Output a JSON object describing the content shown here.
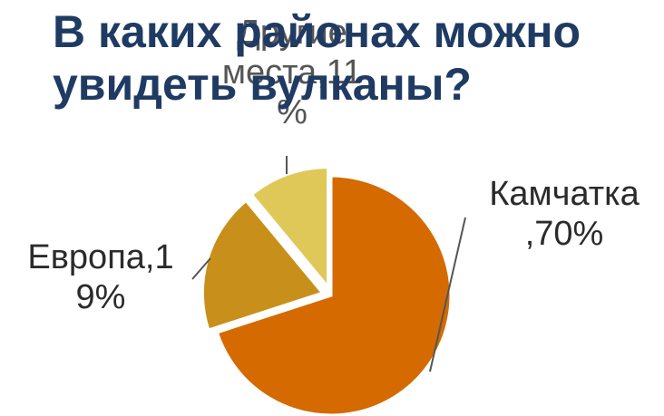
{
  "title": {
    "line1": "В каких районах можно",
    "line2": "увидеть вулканы?"
  },
  "chart_data": {
    "type": "pie",
    "title": "В каких районах можно увидеть вулканы?",
    "slices": [
      {
        "name": "Камчатка",
        "value": 70,
        "color": "#d46a00"
      },
      {
        "name": "Европа",
        "value": 19,
        "color": "#c8901a"
      },
      {
        "name": "Другие места",
        "value": 11,
        "color": "#e0c858"
      }
    ],
    "labels": {
      "kamchatka": {
        "line1": "Камчатка",
        "line2": ",70%"
      },
      "europe": {
        "line1": "Европа,1",
        "line2": "9%"
      },
      "other": {
        "line1": "Другие",
        "line2": "места,11",
        "line3": "%"
      }
    }
  }
}
